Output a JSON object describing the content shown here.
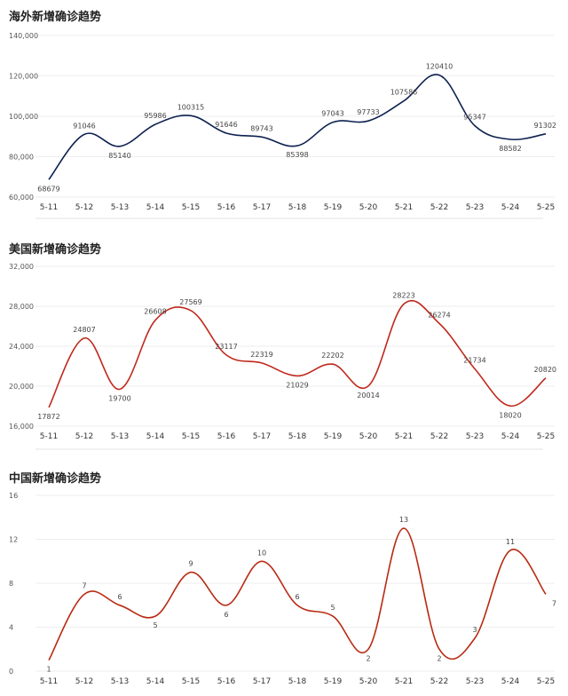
{
  "chart_data": [
    {
      "type": "line",
      "title": "海外新增确诊趋势",
      "categories": [
        "5-11",
        "5-12",
        "5-13",
        "5-14",
        "5-15",
        "5-16",
        "5-17",
        "5-18",
        "5-19",
        "5-20",
        "5-21",
        "5-22",
        "5-23",
        "5-24",
        "5-25"
      ],
      "series": [
        {
          "values": [
            68679,
            91046,
            85140,
            95986,
            100315,
            91646,
            89743,
            85398,
            97043,
            97733,
            107586,
            120410,
            95347,
            88582,
            91302
          ]
        }
      ],
      "ylim": [
        60000,
        140000
      ],
      "yticks": [
        60000,
        80000,
        100000,
        120000,
        140000
      ],
      "ytick_labels": [
        "60,000",
        "80,000",
        "100,000",
        "120,000",
        "140,000"
      ],
      "color": "#0d2150",
      "grid": true
    },
    {
      "type": "line",
      "title": "美国新增确诊趋势",
      "categories": [
        "5-11",
        "5-12",
        "5-13",
        "5-14",
        "5-15",
        "5-16",
        "5-17",
        "5-18",
        "5-19",
        "5-20",
        "5-21",
        "5-22",
        "5-23",
        "5-24",
        "5-25"
      ],
      "series": [
        {
          "values": [
            17872,
            24807,
            19700,
            26608,
            27569,
            23117,
            22319,
            21029,
            22202,
            20014,
            28223,
            26274,
            21734,
            18020,
            20820
          ]
        }
      ],
      "ylim": [
        16000,
        32000
      ],
      "yticks": [
        16000,
        20000,
        24000,
        28000,
        32000
      ],
      "ytick_labels": [
        "16,000",
        "20,000",
        "24,000",
        "28,000",
        "32,000"
      ],
      "color": "#c0281b",
      "grid": true
    },
    {
      "type": "line",
      "title": "中国新增确诊趋势",
      "categories": [
        "5-11",
        "5-12",
        "5-13",
        "5-14",
        "5-15",
        "5-16",
        "5-17",
        "5-18",
        "5-19",
        "5-20",
        "5-21",
        "5-22",
        "5-23",
        "5-24",
        "5-25"
      ],
      "series": [
        {
          "values": [
            1,
            7,
            6,
            5,
            9,
            6,
            10,
            6,
            5,
            2,
            13,
            2,
            3,
            11,
            7
          ]
        }
      ],
      "ylim": [
        0,
        16
      ],
      "yticks": [
        0,
        4,
        8,
        12,
        16
      ],
      "ytick_labels": [
        "0",
        "4",
        "8",
        "12",
        "16"
      ],
      "color": "#b82a12",
      "grid": true
    }
  ]
}
